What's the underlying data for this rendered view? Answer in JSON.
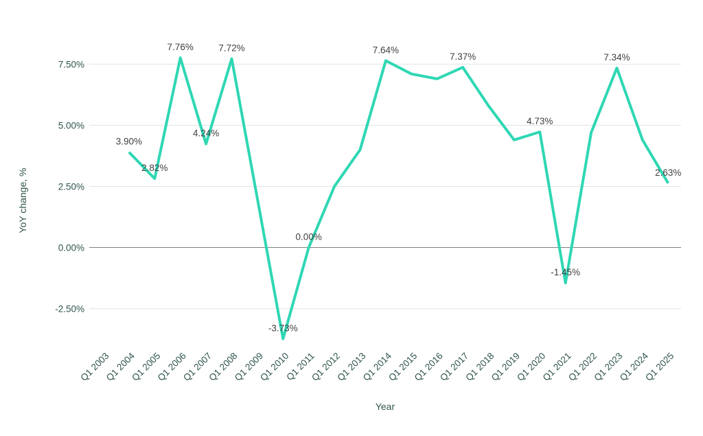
{
  "chart_data": {
    "type": "line",
    "title": "",
    "xlabel": "Year",
    "ylabel": "YoY change, %",
    "categories": [
      "Q1 2003",
      "Q1 2004",
      "Q1 2005",
      "Q1 2006",
      "Q1 2007",
      "Q1 2008",
      "Q1 2009",
      "Q1 2010",
      "Q1 2011",
      "Q1 2012",
      "Q1 2013",
      "Q1 2014",
      "Q1 2015",
      "Q1 2016",
      "Q1 2017",
      "Q1 2018",
      "Q1 2019",
      "Q1 2020",
      "Q1 2021",
      "Q1 2022",
      "Q1 2023",
      "Q1 2024",
      "Q1 2025"
    ],
    "values": [
      null,
      3.9,
      2.82,
      7.76,
      4.24,
      7.72,
      2.0,
      -3.73,
      0.0,
      2.5,
      4.0,
      7.64,
      7.1,
      6.9,
      7.37,
      5.8,
      4.4,
      4.73,
      -1.45,
      4.7,
      7.34,
      4.4,
      2.63
    ],
    "point_labels": [
      null,
      "3.90%",
      "2.82%",
      "7.76%",
      "4.24%",
      "7.72%",
      null,
      "-3.73%",
      "0.00%",
      null,
      null,
      "7.64%",
      null,
      null,
      "7.37%",
      null,
      null,
      "4.73%",
      "-1.45%",
      null,
      "7.34%",
      null,
      "2.63%"
    ],
    "y_ticks": [
      {
        "label": "7.50%",
        "value": 7.5
      },
      {
        "label": "5.00%",
        "value": 5.0
      },
      {
        "label": "2.50%",
        "value": 2.5
      },
      {
        "label": "0.00%",
        "value": 0.0
      },
      {
        "label": "-2.50%",
        "value": -2.5
      }
    ],
    "ylim": [
      -4.0,
      9.0
    ],
    "grid": true,
    "legend": "none",
    "colors": {
      "line": "#2fd7b4",
      "gridline": "#e3e3e3",
      "zero_line": "#7e7e7e",
      "axis_text": "#2f544e",
      "data_label": "#404040",
      "background": "#ffffff"
    }
  }
}
